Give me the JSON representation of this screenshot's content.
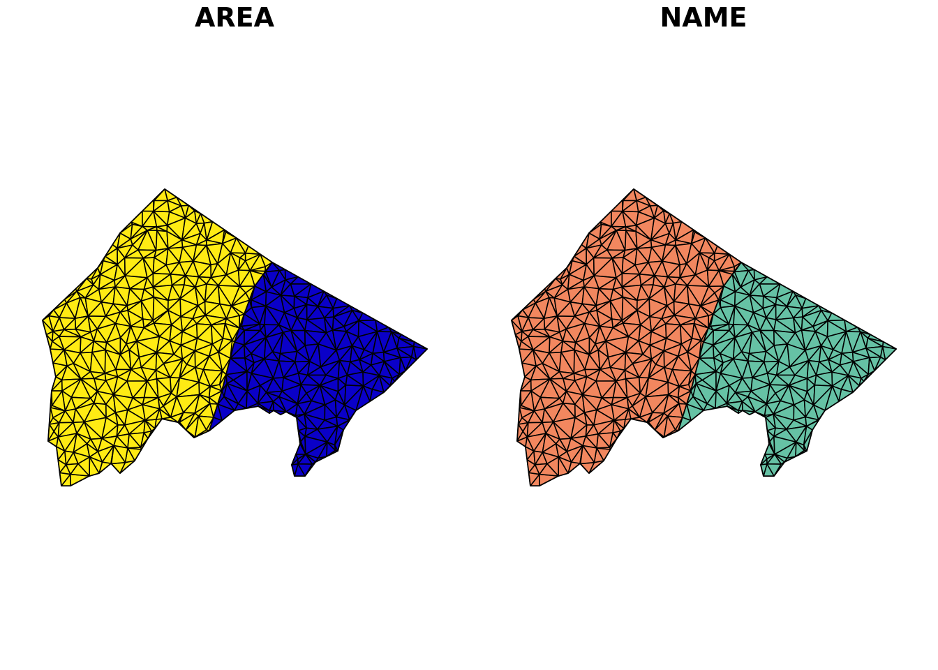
{
  "panels": [
    {
      "title": "AREA",
      "regions": [
        {
          "fill": "#FFEB14"
        },
        {
          "fill": "#0A00C8"
        }
      ]
    },
    {
      "title": "NAME",
      "regions": [
        {
          "fill": "#F2875F"
        },
        {
          "fill": "#66C2A5"
        }
      ]
    }
  ],
  "style": {
    "mesh_stroke": "#000000",
    "background": "#FFFFFF"
  }
}
